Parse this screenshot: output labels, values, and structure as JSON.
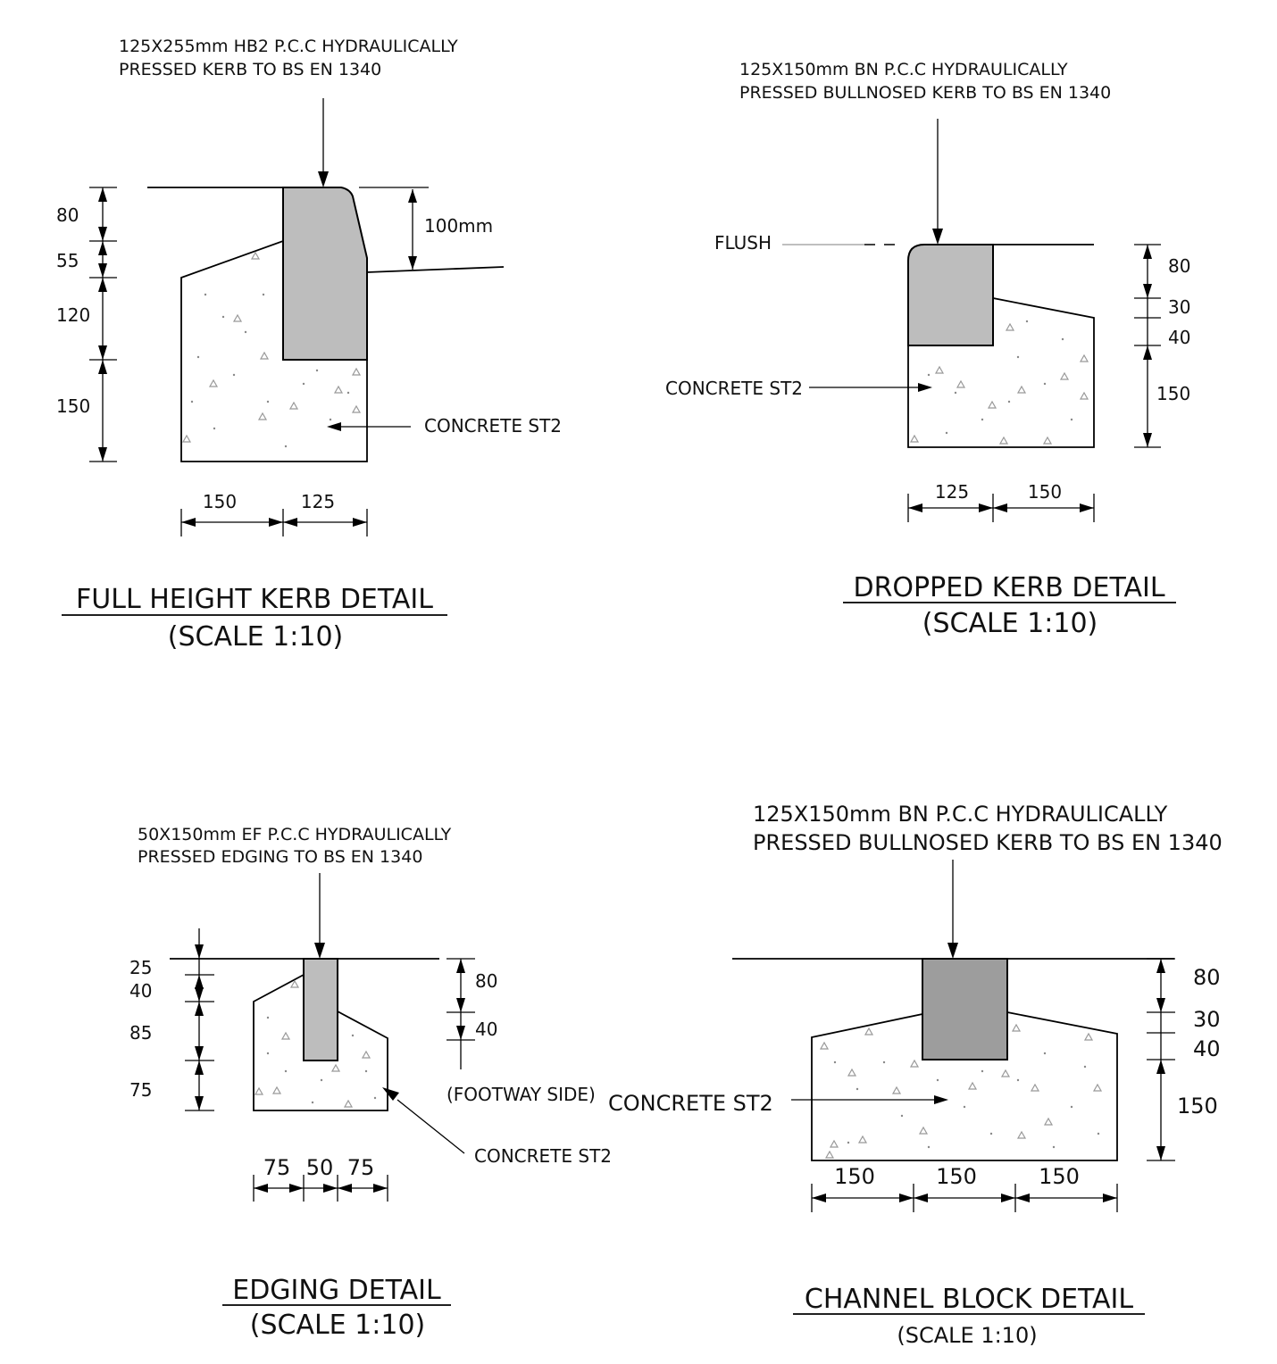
{
  "colors": {
    "line": "#000000",
    "kerb_fill": "#bdbdbd",
    "channel_fill": "#9d9d9d",
    "concrete_fill": "#ffffff",
    "leader_grey": "#999999"
  },
  "full_height": {
    "note_line1": "125X255mm HB2 P.C.C HYDRAULICALLY",
    "note_line2": "PRESSED KERB TO BS EN 1340",
    "upstand": "100mm",
    "dim_80": "80",
    "dim_55": "55",
    "dim_120": "120",
    "dim_150": "150",
    "width_150": "150",
    "width_125": "125",
    "concrete": "CONCRETE ST2",
    "title": "FULL HEIGHT KERB DETAIL",
    "scale": "(SCALE 1:10)"
  },
  "dropped": {
    "note_line1": "125X150mm BN P.C.C HYDRAULICALLY",
    "note_line2": "PRESSED BULLNOSED KERB TO BS EN 1340",
    "flush": "FLUSH",
    "concrete": "CONCRETE ST2",
    "dim_80": "80",
    "dim_30": "30",
    "dim_40": "40",
    "dim_150": "150",
    "width_125": "125",
    "width_150": "150",
    "title": "DROPPED KERB DETAIL",
    "scale": "(SCALE 1:10)"
  },
  "edging": {
    "note_line1": "50X150mm EF P.C.C HYDRAULICALLY",
    "note_line2": "PRESSED EDGING TO BS EN 1340",
    "dim_25": "25",
    "dim_40": "40",
    "dim_85": "85",
    "dim_75": "75",
    "right_80": "80",
    "right_40": "40",
    "footway": "(FOOTWAY SIDE)",
    "concrete": "CONCRETE ST2",
    "width_75a": "75",
    "width_50": "50",
    "width_75b": "75",
    "title": "EDGING DETAIL",
    "scale": "(SCALE 1:10)"
  },
  "channel": {
    "note_line1": "125X150mm BN P.C.C HYDRAULICALLY",
    "note_line2": "PRESSED BULLNOSED KERB TO BS EN 1340",
    "concrete": "CONCRETE ST2",
    "dim_80": "80",
    "dim_30": "30",
    "dim_40": "40",
    "dim_150": "150",
    "width_150a": "150",
    "width_150b": "150",
    "width_150c": "150",
    "title": "CHANNEL BLOCK DETAIL",
    "scale": "(SCALE 1:10)"
  }
}
